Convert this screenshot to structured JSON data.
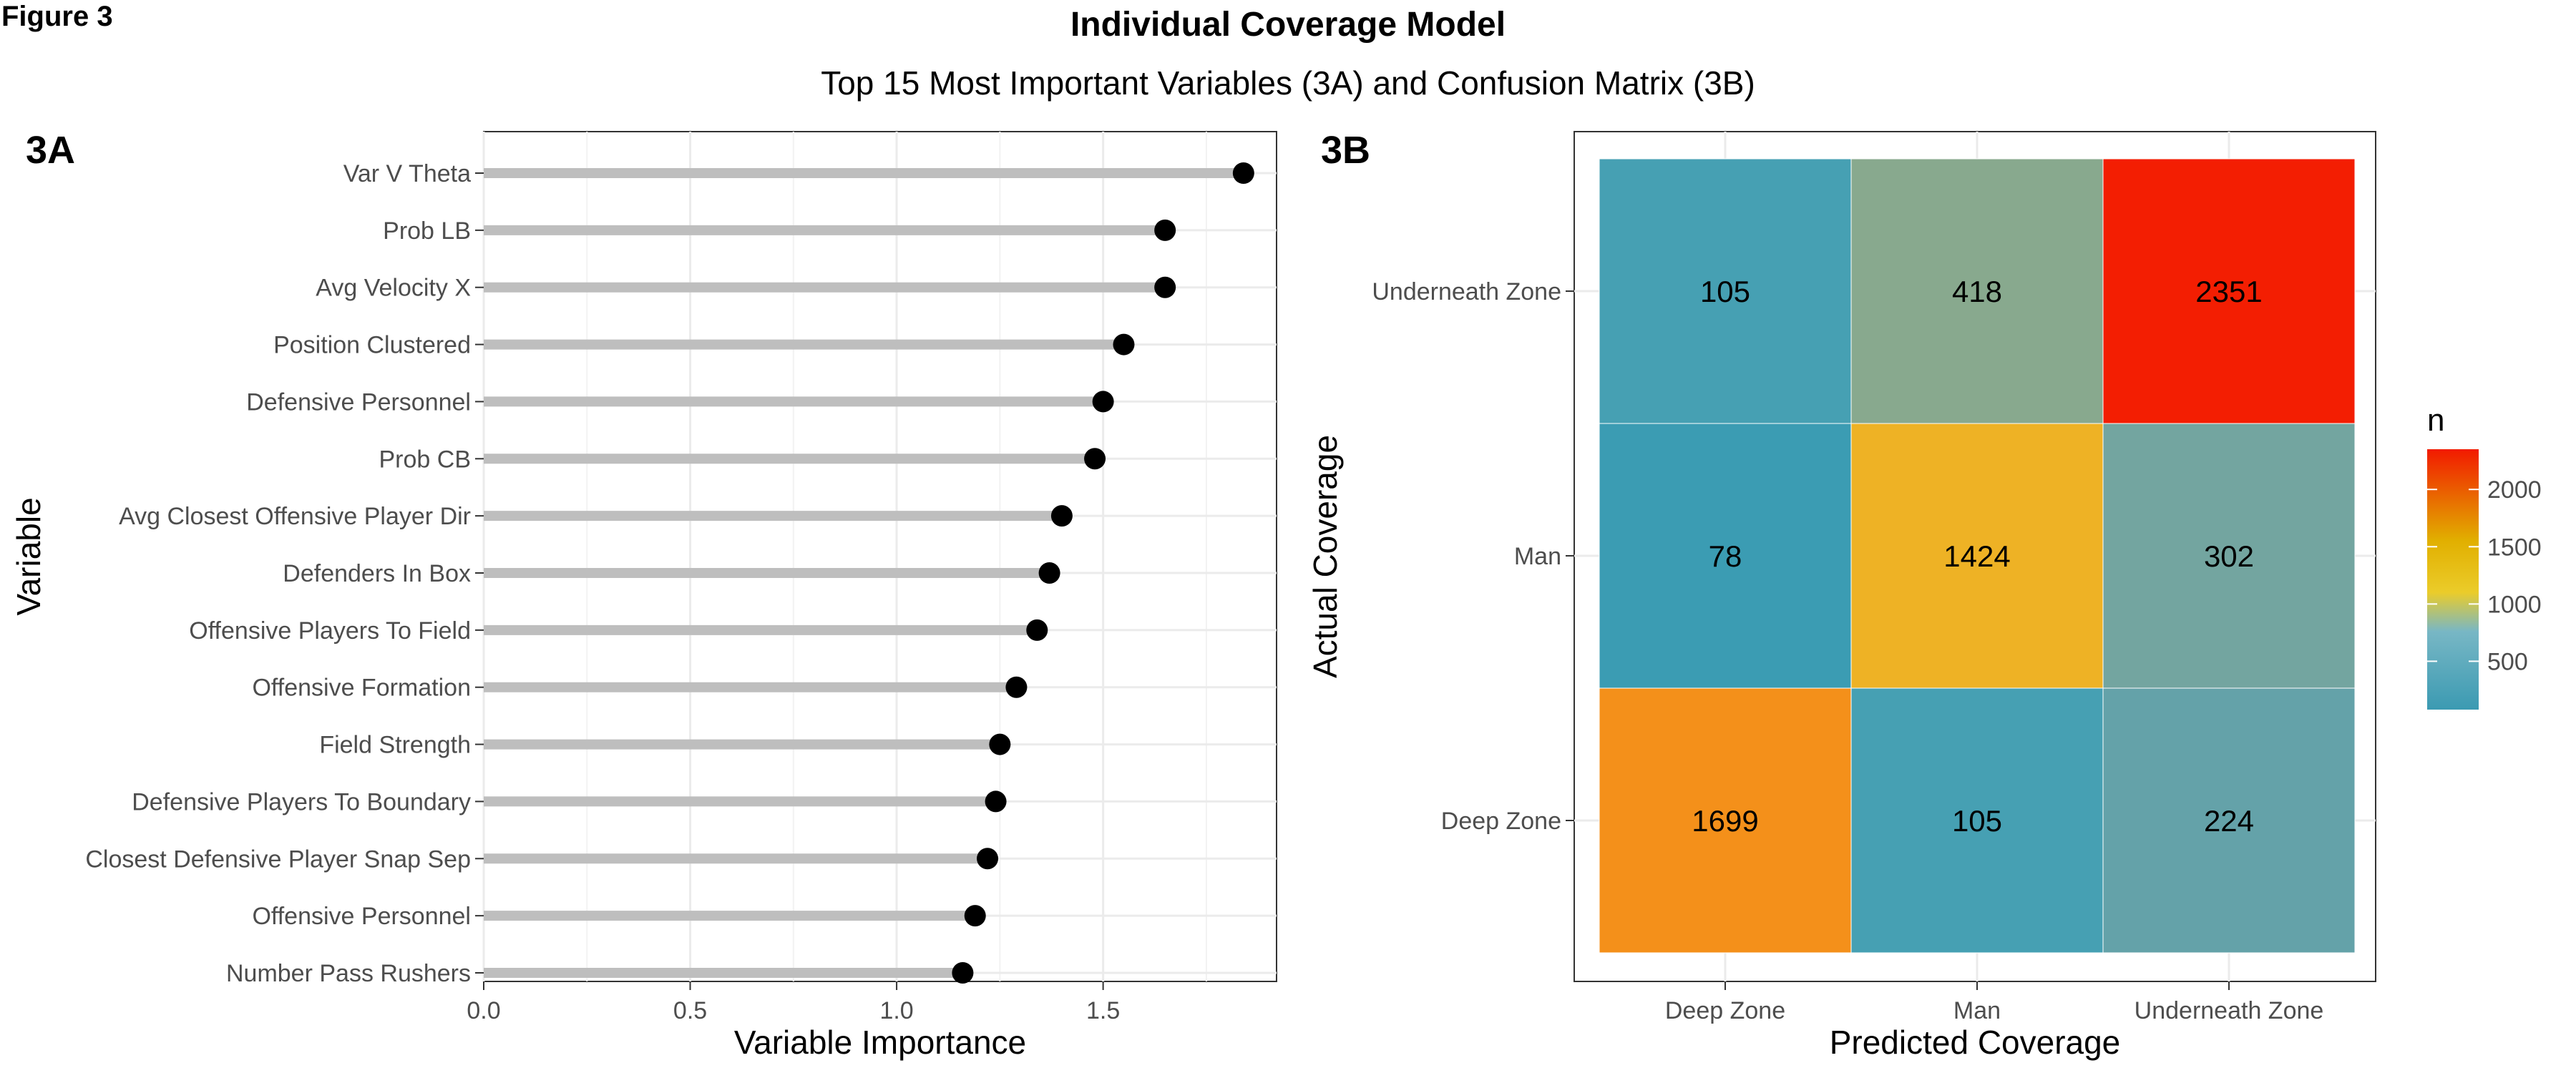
{
  "figure_label": "Figure 3",
  "title": "Individual Coverage Model",
  "subtitle": "Top 15 Most Important Variables (3A) and Confusion Matrix (3B)",
  "chart_data": [
    {
      "type": "lollipop",
      "panel_label": "3A",
      "xlabel": "Variable Importance",
      "ylabel": "Variable",
      "xlim": [
        0,
        1.92
      ],
      "x_ticks": [
        "0.0",
        "0.5",
        "1.0",
        "1.5"
      ],
      "grid": true,
      "colors": {
        "stem": "#bebebe",
        "dot": "#000000"
      },
      "points": [
        {
          "label": "Var V Theta",
          "value": 1.84
        },
        {
          "label": "Prob LB",
          "value": 1.65
        },
        {
          "label": "Avg Velocity X",
          "value": 1.65
        },
        {
          "label": "Position Clustered",
          "value": 1.55
        },
        {
          "label": "Defensive Personnel",
          "value": 1.5
        },
        {
          "label": "Prob CB",
          "value": 1.48
        },
        {
          "label": "Avg Closest Offensive Player Dir",
          "value": 1.4
        },
        {
          "label": "Defenders In Box",
          "value": 1.37
        },
        {
          "label": "Offensive Players To Field",
          "value": 1.34
        },
        {
          "label": "Offensive Formation",
          "value": 1.29
        },
        {
          "label": "Field Strength",
          "value": 1.25
        },
        {
          "label": "Defensive Players To Boundary",
          "value": 1.24
        },
        {
          "label": "Closest Defensive Player Snap Sep",
          "value": 1.22
        },
        {
          "label": "Offensive Personnel",
          "value": 1.19
        },
        {
          "label": "Number Pass Rushers",
          "value": 1.16
        }
      ]
    },
    {
      "type": "heatmap",
      "panel_label": "3B",
      "xlabel": "Predicted Coverage",
      "ylabel": "Actual Coverage",
      "x_categories": [
        "Deep Zone",
        "Man",
        "Underneath Zone"
      ],
      "y_categories": [
        "Underneath Zone",
        "Man",
        "Deep Zone"
      ],
      "values": [
        [
          105,
          418,
          2351
        ],
        [
          78,
          1424,
          302
        ],
        [
          1699,
          105,
          224
        ]
      ],
      "legend": {
        "title": "n",
        "ticks": [
          "500",
          "1000",
          "1500",
          "2000"
        ],
        "position": "right"
      },
      "colors": {
        "cells": [
          [
            "#46a0b3",
            "#88a98e",
            "#f31e02"
          ],
          [
            "#3b9cb3",
            "#eeb225",
            "#73a5a0"
          ],
          [
            "#f4901a",
            "#46a0b3",
            "#64a2a9"
          ]
        ],
        "scale": [
          "#3b9ab2",
          "#78b7c5",
          "#ebcc2a",
          "#e1af00",
          "#f21a00"
        ]
      }
    }
  ]
}
